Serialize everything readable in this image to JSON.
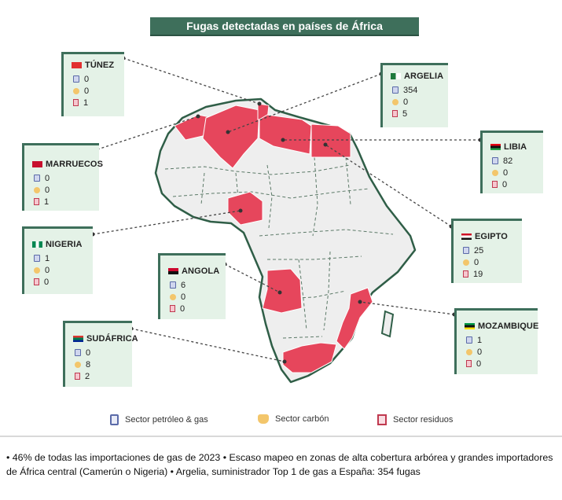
{
  "title": "Fugas detectadas en países de África",
  "colors": {
    "header_bg": "#3e6f5b",
    "card_bg": "#e4f2e7",
    "highlight_country": "#e6465c",
    "map_land": "#eeeeee",
    "map_border": "#2f5e47"
  },
  "icons": {
    "oil_gas": "oil-drum-icon",
    "coal": "coal-cart-icon",
    "waste": "trash-bin-icon"
  },
  "countries": [
    {
      "name": "TÚNEZ",
      "oil_gas": "0",
      "coal": "0",
      "waste": "1"
    },
    {
      "name": "ARGELIA",
      "oil_gas": "354",
      "coal": "0",
      "waste": "5"
    },
    {
      "name": "MARRUECOS",
      "oil_gas": "0",
      "coal": "0",
      "waste": "1"
    },
    {
      "name": "LIBIA",
      "oil_gas": "82",
      "coal": "0",
      "waste": "0"
    },
    {
      "name": "NIGERIA",
      "oil_gas": "1",
      "coal": "0",
      "waste": "0"
    },
    {
      "name": "EGIPTO",
      "oil_gas": "25",
      "coal": "0",
      "waste": "19"
    },
    {
      "name": "ANGOLA",
      "oil_gas": "6",
      "coal": "0",
      "waste": "0"
    },
    {
      "name": "MOZAMBIQUE",
      "oil_gas": "1",
      "coal": "0",
      "waste": "0"
    },
    {
      "name": "SUDÁFRICA",
      "oil_gas": "0",
      "coal": "8",
      "waste": "2"
    }
  ],
  "legend": {
    "oil_gas": "Sector petróleo & gas",
    "coal": "Sector carbón",
    "waste": "Sector residuos"
  },
  "footer": "• 46% de todas las importaciones de gas de 2023 • Escaso mapeo en zonas de alta cobertura arbórea y grandes importadores de África central (Camerún o Nigeria) •  Argelia, suministrador  Top 1 de gas a España: 354 fugas"
}
